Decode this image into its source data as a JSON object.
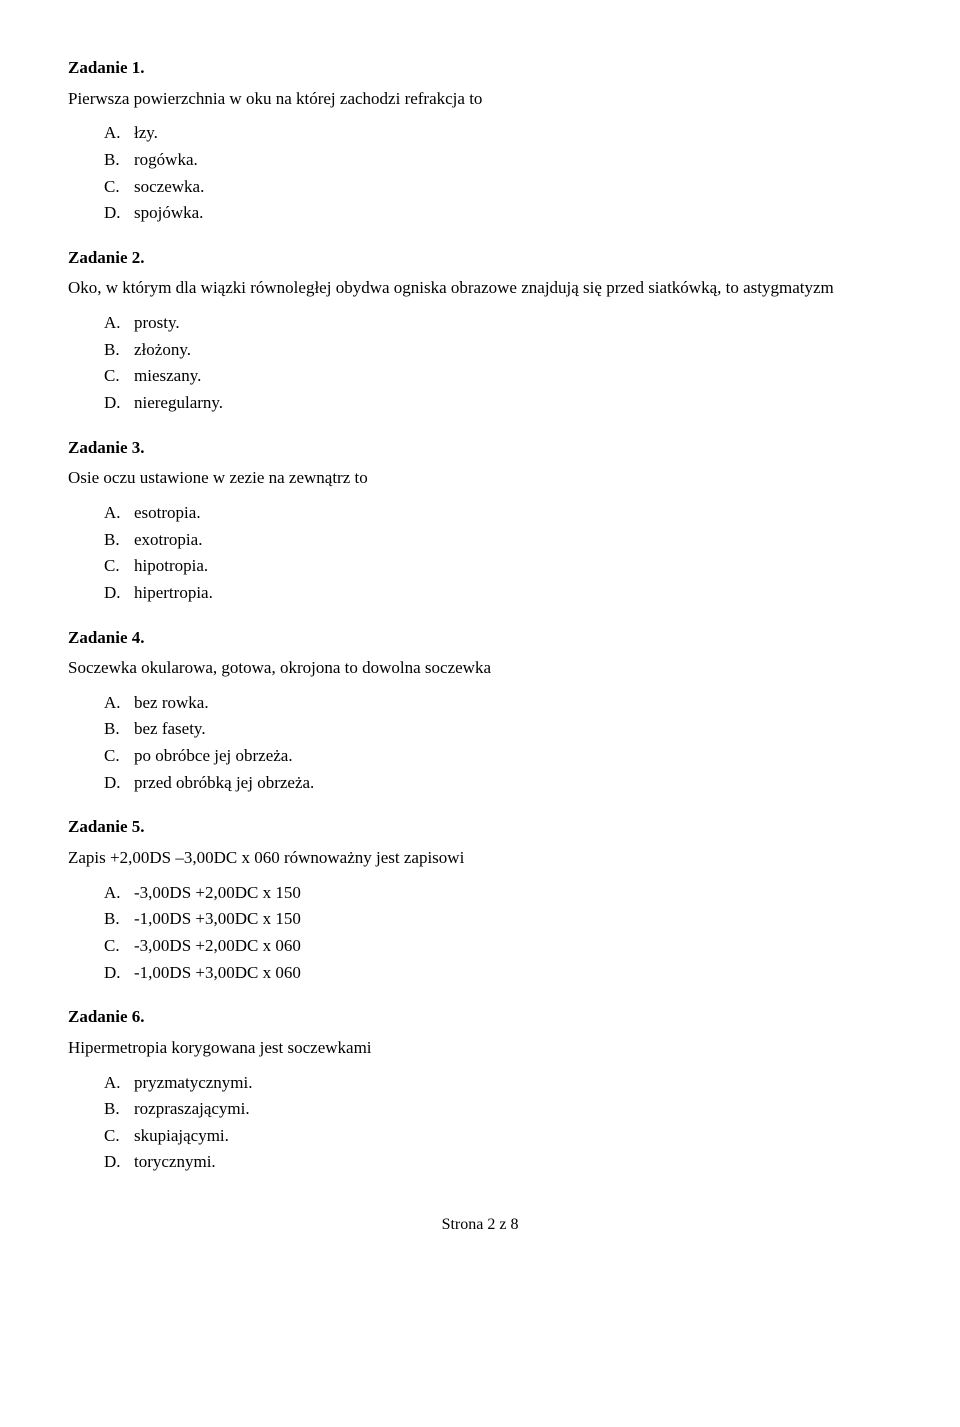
{
  "tasks": [
    {
      "title": "Zadanie 1.",
      "question": "Pierwsza powierzchnia w oku na której zachodzi refrakcja to",
      "options": [
        {
          "letter": "A.",
          "text": "łzy."
        },
        {
          "letter": "B.",
          "text": "rogówka."
        },
        {
          "letter": "C.",
          "text": "soczewka."
        },
        {
          "letter": "D.",
          "text": "spojówka."
        }
      ]
    },
    {
      "title": "Zadanie 2.",
      "question": "Oko, w którym dla wiązki równoległej obydwa ogniska obrazowe znajdują się przed siatkówką, to astygmatyzm",
      "options": [
        {
          "letter": "A.",
          "text": "prosty."
        },
        {
          "letter": "B.",
          "text": "złożony."
        },
        {
          "letter": "C.",
          "text": "mieszany."
        },
        {
          "letter": "D.",
          "text": "nieregularny."
        }
      ]
    },
    {
      "title": "Zadanie 3.",
      "question": "Osie oczu ustawione w zezie na zewnątrz to",
      "options": [
        {
          "letter": "A.",
          "text": "esotropia."
        },
        {
          "letter": "B.",
          "text": "exotropia."
        },
        {
          "letter": "C.",
          "text": "hipotropia."
        },
        {
          "letter": "D.",
          "text": "hipertropia."
        }
      ]
    },
    {
      "title": "Zadanie 4.",
      "question": "Soczewka okularowa, gotowa, okrojona to dowolna soczewka",
      "options": [
        {
          "letter": "A.",
          "text": "bez rowka."
        },
        {
          "letter": "B.",
          "text": "bez fasety."
        },
        {
          "letter": "C.",
          "text": "po obróbce jej obrzeża."
        },
        {
          "letter": "D.",
          "text": "przed obróbką jej obrzeża."
        }
      ]
    },
    {
      "title": "Zadanie 5.",
      "question": "Zapis +2,00DS –3,00DC x 060 równoważny jest zapisowi",
      "options": [
        {
          "letter": "A.",
          "text": "-3,00DS +2,00DC x 150"
        },
        {
          "letter": "B.",
          "text": "-1,00DS +3,00DC x 150"
        },
        {
          "letter": "C.",
          "text": "-3,00DS +2,00DC x 060"
        },
        {
          "letter": "D.",
          "text": "-1,00DS +3,00DC x 060"
        }
      ]
    },
    {
      "title": "Zadanie 6.",
      "question": "Hipermetropia korygowana jest soczewkami",
      "options": [
        {
          "letter": "A.",
          "text": "pryzmatycznymi."
        },
        {
          "letter": "B.",
          "text": "rozpraszającymi."
        },
        {
          "letter": "C.",
          "text": "skupiającymi."
        },
        {
          "letter": "D.",
          "text": "torycznymi."
        }
      ]
    }
  ],
  "footer": "Strona 2 z 8"
}
